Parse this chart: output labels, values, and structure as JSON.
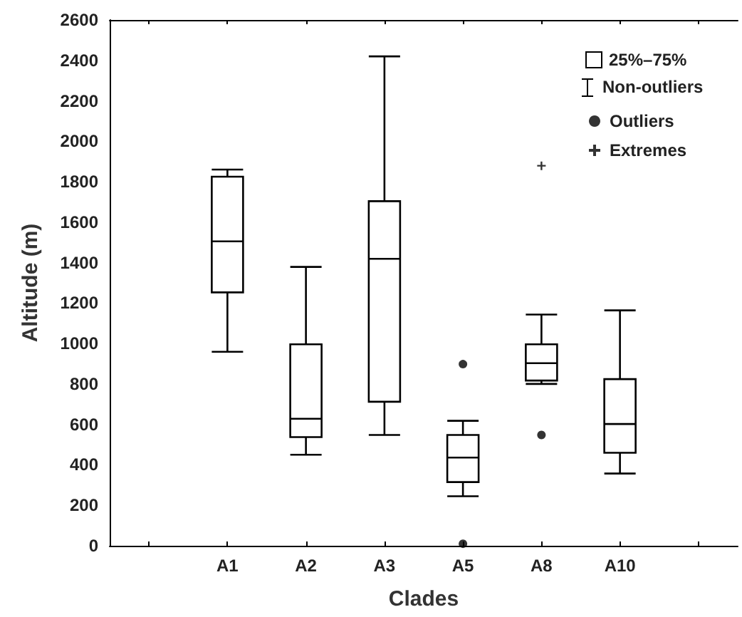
{
  "chart_data": {
    "type": "box",
    "xlabel": "Clades",
    "ylabel": "Altitude (m)",
    "categories": [
      null,
      "A1",
      "A2",
      "A3",
      "A5",
      "A8",
      "A10",
      null
    ],
    "ylim": [
      0,
      2600
    ],
    "yticks": [
      0,
      200,
      400,
      600,
      800,
      1000,
      1200,
      1400,
      1600,
      1800,
      2000,
      2200,
      2400,
      2600
    ],
    "grid": false,
    "legend": "top right",
    "annotations": [
      "Non-outliers"
    ],
    "series": [
      {
        "name": "25%–75%",
        "color": "#000000",
        "boxes": [
          null,
          {
            "low": 959,
            "q1": 1253,
            "median": 1505,
            "q3": 1825,
            "high": 1860
          },
          {
            "low": 450,
            "q1": 537,
            "median": 628,
            "q3": 996,
            "high": 1379
          },
          {
            "low": 548,
            "q1": 712,
            "median": 1419,
            "q3": 1704,
            "high": 2420
          },
          {
            "low": 245,
            "q1": 315,
            "median": 436,
            "q3": 548,
            "high": 618
          },
          {
            "low": 800,
            "q1": 817,
            "median": 903,
            "q3": 996,
            "high": 1143
          },
          {
            "low": 357,
            "q1": 460,
            "median": 602,
            "q3": 824,
            "high": 1164
          },
          null
        ]
      },
      {
        "type": "scatter",
        "name": "Outliers",
        "color": "#000000",
        "marker": "circle",
        "x": [
          "A5",
          "A5",
          "A8"
        ],
        "values": [
          898,
          10,
          548
        ]
      },
      {
        "type": "scatter",
        "name": "Extremes",
        "color": "#000000",
        "marker": "cross",
        "x": [
          "A8"
        ],
        "values": [
          1879
        ]
      }
    ]
  }
}
